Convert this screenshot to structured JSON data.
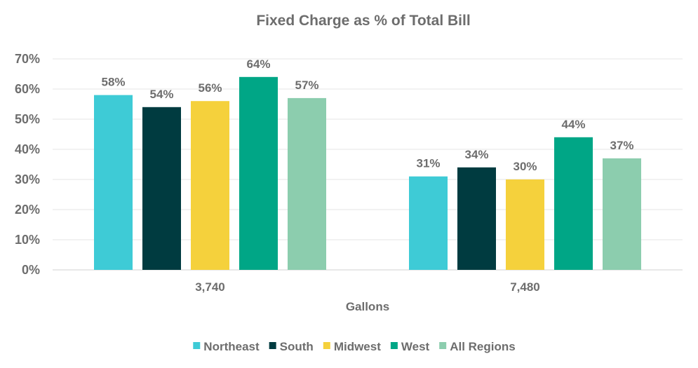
{
  "chart_data": {
    "type": "bar",
    "title": "Fixed Charge as % of Total Bill",
    "xlabel": "Gallons",
    "ylabel": "",
    "ylim": [
      0,
      70
    ],
    "ytick_values": [
      0,
      10,
      20,
      30,
      40,
      50,
      60,
      70
    ],
    "ytick_labels": [
      "0%",
      "10%",
      "20%",
      "30%",
      "40%",
      "50%",
      "60%",
      "70%"
    ],
    "categories": [
      "3,740",
      "7,480"
    ],
    "grid": true,
    "legend_position": "bottom",
    "series": [
      {
        "name": "Northeast",
        "color": "#3ecbd6",
        "values": [
          58,
          31
        ],
        "labels": [
          "58%",
          "31%"
        ]
      },
      {
        "name": "South",
        "color": "#003b40",
        "values": [
          54,
          34
        ],
        "labels": [
          "54%",
          "34%"
        ]
      },
      {
        "name": "Midwest",
        "color": "#f5d13c",
        "values": [
          56,
          30
        ],
        "labels": [
          "56%",
          "30%"
        ]
      },
      {
        "name": "West",
        "color": "#00a686",
        "values": [
          64,
          44
        ],
        "labels": [
          "64%",
          "44%"
        ]
      },
      {
        "name": "All Regions",
        "color": "#8ccdae",
        "values": [
          57,
          37
        ],
        "labels": [
          "57%",
          "37%"
        ]
      }
    ]
  }
}
